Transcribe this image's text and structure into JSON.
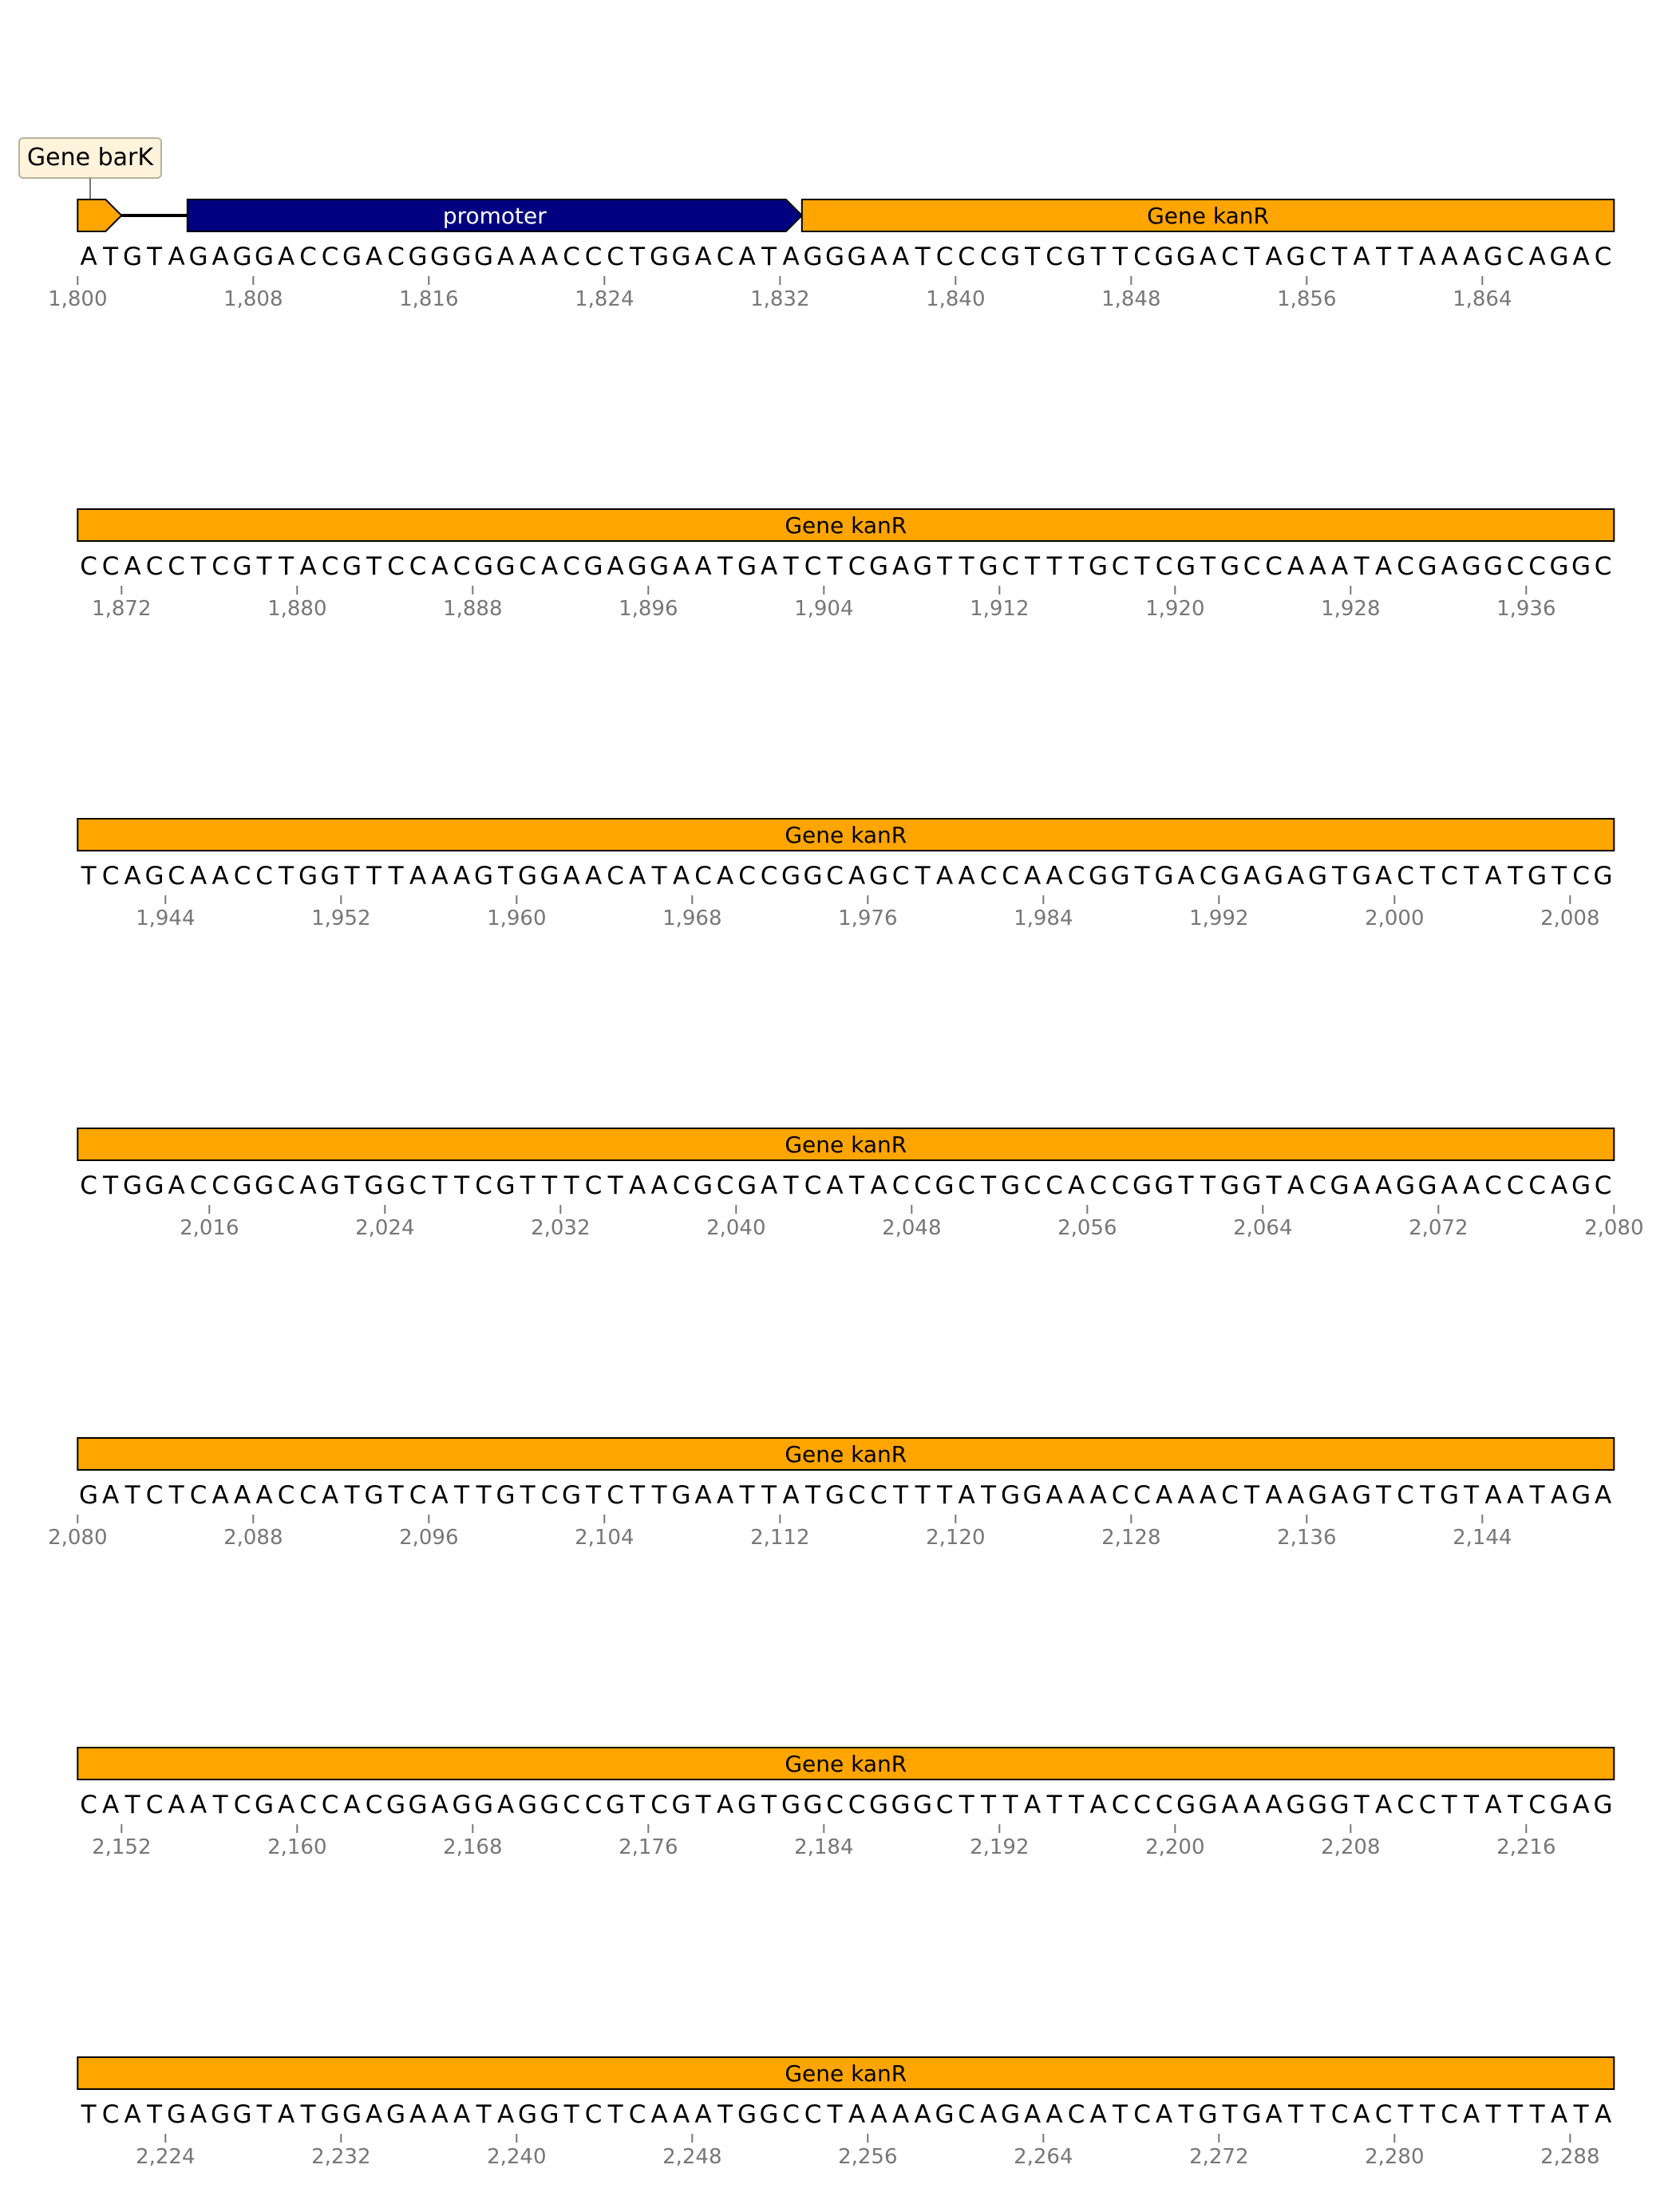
{
  "colors": {
    "gene": "#ffa500",
    "promoter": "#000080",
    "gene_text": "#000000",
    "promoter_text": "#ffffff",
    "tick": "#777777",
    "callout_fill": "#fff3dc",
    "callout_border": "#b9b29a"
  },
  "callout": {
    "label": "Gene barK"
  },
  "rows": [
    {
      "start": 1800,
      "sequence": "ATGTAGAGGACCGACGGGGAAACCCTGGACATAGGGAATCCCGTCGTTCGGACTAGCTATTAAAGCAGAC",
      "ticks": [
        "1,800",
        "1,808",
        "1,816",
        "1,824",
        "1,832",
        "1,840",
        "1,848",
        "1,856",
        "1,864"
      ],
      "features": [
        {
          "label": "",
          "type": "gene",
          "from": 1800,
          "to": 1802,
          "arrow": "right"
        },
        {
          "label": "",
          "type": "link",
          "from": 1802,
          "to": 1805
        },
        {
          "label": "promoter",
          "type": "promoter",
          "from": 1805,
          "to": 1833,
          "arrow": "right"
        },
        {
          "label": "Gene kanR",
          "type": "gene",
          "from": 1833,
          "to": 1870
        }
      ]
    },
    {
      "start": 1870,
      "sequence": "CCACCTCGTTACGTCCACGGCACGAGGAATGATCTCGAGTTGCTTTGCTCGTGCCAAATACGAGGCCGGC",
      "ticks": [
        "1,872",
        "1,880",
        "1,888",
        "1,896",
        "1,904",
        "1,912",
        "1,920",
        "1,928",
        "1,936"
      ],
      "features": [
        {
          "label": "Gene kanR",
          "type": "gene",
          "from": 1870,
          "to": 1940
        }
      ]
    },
    {
      "start": 1940,
      "sequence": "TCAGCAACCTGGTTTAAAGTGGAACATACACCGGCAGCTAACCAACGGTGACGAGAGTGACTCTATGTCG",
      "ticks": [
        "1,944",
        "1,952",
        "1,960",
        "1,968",
        "1,976",
        "1,984",
        "1,992",
        "2,000",
        "2,008"
      ],
      "features": [
        {
          "label": "Gene kanR",
          "type": "gene",
          "from": 1940,
          "to": 2010
        }
      ]
    },
    {
      "start": 2010,
      "sequence": "CTGGACCGGCAGTGGCTTCGTTTCTAACGCGATCATACCGCTGCCACCGGTTGGTACGAAGGAACCCAGC",
      "ticks": [
        "2,016",
        "2,024",
        "2,032",
        "2,040",
        "2,048",
        "2,056",
        "2,064",
        "2,072",
        "2,080"
      ],
      "features": [
        {
          "label": "Gene kanR",
          "type": "gene",
          "from": 2010,
          "to": 2080
        }
      ]
    },
    {
      "start": 2080,
      "sequence": "GATCTCAAACCATGTCATTGTCGTCTTGAATTATGCCTTTATGGAAACCAAACTAAGAGTCTGTAATAGA",
      "ticks": [
        "2,080",
        "2,088",
        "2,096",
        "2,104",
        "2,112",
        "2,120",
        "2,128",
        "2,136",
        "2,144"
      ],
      "features": [
        {
          "label": "Gene kanR",
          "type": "gene",
          "from": 2080,
          "to": 2150
        }
      ]
    },
    {
      "start": 2150,
      "sequence": "CATCAATCGACCACGGAGGAGGCCGTCGTAGTGGCCGGGCTTTATTACCCGGAAAGGGTACCTTATCGAG",
      "ticks": [
        "2,152",
        "2,160",
        "2,168",
        "2,176",
        "2,184",
        "2,192",
        "2,200",
        "2,208",
        "2,216"
      ],
      "features": [
        {
          "label": "Gene kanR",
          "type": "gene",
          "from": 2150,
          "to": 2220
        }
      ]
    },
    {
      "start": 2220,
      "sequence": "TCATGAGGTATGGAGAAATAGGTCTCAAATGGCCTAAAAGCAGAACATCATGTGATTCACTTCATTTATA",
      "ticks": [
        "2,224",
        "2,232",
        "2,240",
        "2,248",
        "2,256",
        "2,264",
        "2,272",
        "2,280",
        "2,288"
      ],
      "features": [
        {
          "label": "Gene kanR",
          "type": "gene",
          "from": 2220,
          "to": 2290
        }
      ]
    }
  ]
}
